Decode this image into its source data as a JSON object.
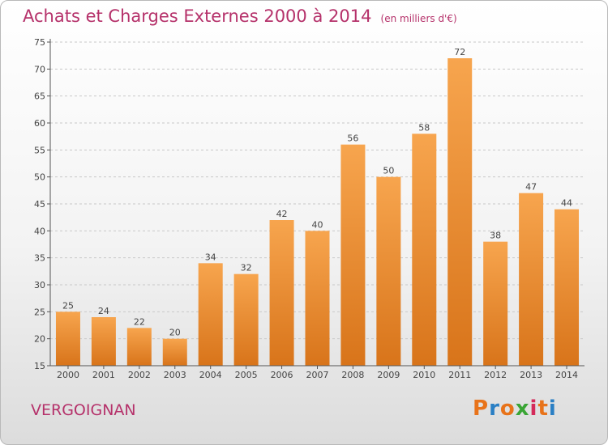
{
  "colors": {
    "title": "#b5316a",
    "bar_top": "#f7a54e",
    "bar_bottom": "#d8741a",
    "axis": "#555555",
    "grid": "#c8c8c8"
  },
  "header": {
    "title": "Achats et Charges Externes 2000 à 2014",
    "subtitle": "(en milliers d'€)"
  },
  "footer": {
    "commune": "VERGOIGNAN",
    "logo_letters": [
      "P",
      "r",
      "o",
      "x",
      "i",
      "t",
      "i"
    ],
    "logo_colors": [
      "#e8731a",
      "#2a7fc4",
      "#e8731a",
      "#3aa535",
      "#d42a5a",
      "#e8731a",
      "#2a7fc4"
    ]
  },
  "chart_data": {
    "type": "bar",
    "title": "Achats et Charges Externes 2000 à 2014",
    "subtitle": "(en milliers d'€)",
    "xlabel": "",
    "ylabel": "",
    "categories": [
      "2000",
      "2001",
      "2002",
      "2003",
      "2004",
      "2005",
      "2006",
      "2007",
      "2008",
      "2009",
      "2010",
      "2011",
      "2012",
      "2013",
      "2014"
    ],
    "values": [
      25,
      24,
      22,
      20,
      34,
      32,
      42,
      40,
      56,
      50,
      58,
      72,
      38,
      47,
      44
    ],
    "ylim": [
      15,
      75
    ],
    "yticks": [
      15,
      20,
      25,
      30,
      35,
      40,
      45,
      50,
      55,
      60,
      65,
      70,
      75
    ],
    "grid": true,
    "legend": "none"
  }
}
